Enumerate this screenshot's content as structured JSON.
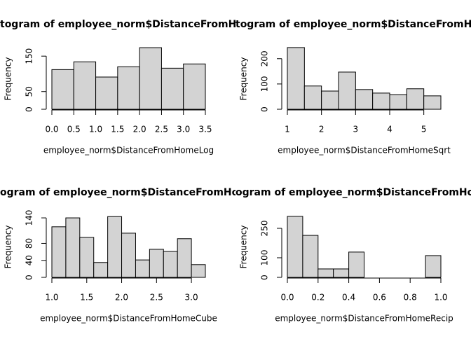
{
  "chart_data": [
    {
      "type": "histogram",
      "title": "togram of employee_norm$DistanceFromHo",
      "x_label": "employee_norm$DistanceFromHomeLog",
      "y_label": "Frequency",
      "bins": [
        0,
        0.5,
        1,
        1.5,
        2,
        2.5,
        3,
        3.5
      ],
      "values": [
        112,
        134,
        91,
        120,
        174,
        116,
        128
      ],
      "color": "#d3d3d3",
      "xlim": [
        0,
        3.5
      ],
      "xticks": [
        {
          "value": 0,
          "label": "0.0"
        },
        0.5,
        {
          "value": 1,
          "label": "1.0"
        },
        1.5,
        {
          "value": 2,
          "label": "2.0"
        },
        2.5,
        {
          "value": 3,
          "label": "3.0"
        },
        3.5
      ],
      "ylim": [
        0,
        180
      ],
      "yticks": [
        0,
        50,
        150
      ]
    },
    {
      "type": "histogram",
      "title": "togram of employee_norm$DistanceFromHo",
      "x_label": "employee_norm$DistanceFromHomeSqrt",
      "y_label": "Frequency",
      "bins": [
        1,
        1.5,
        2,
        2.5,
        3,
        3.5,
        4,
        4.5,
        5,
        5.5
      ],
      "values": [
        244,
        92,
        72,
        147,
        78,
        64,
        58,
        81,
        53
      ],
      "color": "#d3d3d3",
      "xlim": [
        1,
        5.5
      ],
      "xticks": [
        1,
        2,
        3,
        4,
        5
      ],
      "ylim": [
        0,
        252
      ],
      "yticks": [
        0,
        100,
        200
      ]
    },
    {
      "type": "histogram",
      "title": "ogram of employee_norm$DistanceFromHor",
      "x_label": "employee_norm$DistanceFromHomeCube",
      "y_label": "Frequency",
      "bins": [
        1,
        1.2,
        1.4,
        1.6,
        1.8,
        2,
        2.2,
        2.4,
        2.6,
        2.8,
        3,
        3.2
      ],
      "values": [
        119,
        140,
        94,
        35,
        143,
        104,
        41,
        66,
        61,
        91,
        30
      ],
      "color": "#d3d3d3",
      "xlim": [
        1,
        3.2
      ],
      "xticks": [
        {
          "value": 1,
          "label": "1.0"
        },
        1.5,
        {
          "value": 2,
          "label": "2.0"
        },
        2.5,
        {
          "value": 3,
          "label": "3.0"
        }
      ],
      "ylim": [
        0,
        150
      ],
      "yticks": [
        0,
        40,
        80,
        140
      ]
    },
    {
      "type": "histogram",
      "title": "ogram of employee_norm$DistanceFromHo",
      "x_label": "employee_norm$DistanceFromHomeRecip",
      "y_label": "Frequency",
      "bins": [
        0,
        0.1,
        0.2,
        0.3,
        0.4,
        0.5,
        0.6,
        0.7,
        0.8,
        0.9,
        1
      ],
      "values": [
        311,
        214,
        43,
        43,
        129,
        0,
        0,
        0,
        0,
        111
      ],
      "color": "#d3d3d3",
      "xlim": [
        0,
        1
      ],
      "xticks": [
        {
          "value": 0,
          "label": "0.0"
        },
        0.2,
        0.4,
        0.6,
        0.8,
        {
          "value": 1,
          "label": "1.0"
        }
      ],
      "ylim": [
        0,
        325
      ],
      "yticks": [
        0,
        100,
        250
      ]
    }
  ]
}
